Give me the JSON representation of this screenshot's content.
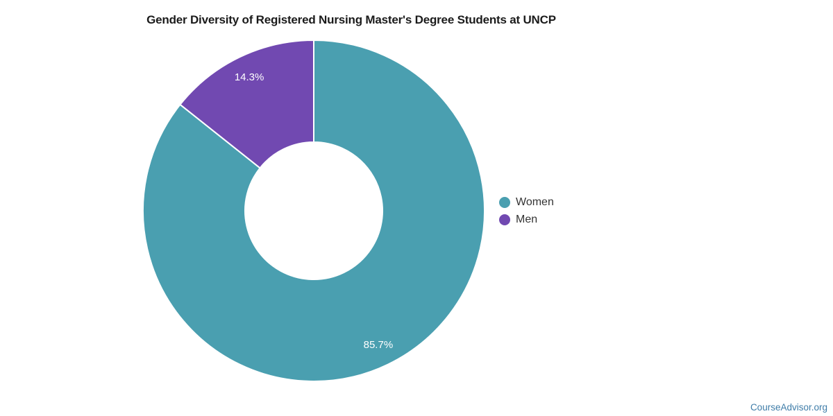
{
  "chart_data": {
    "type": "pie",
    "donut": true,
    "title": "Gender Diversity of Registered Nursing Master's Degree Students at UNCP",
    "slices": [
      {
        "label": "Women",
        "value": 85.7,
        "display": "85.7%",
        "color": "#4A9FB0"
      },
      {
        "label": "Men",
        "value": 14.3,
        "display": "14.3%",
        "color": "#7149B1"
      }
    ],
    "start_angle_deg": 0,
    "direction": "clockwise",
    "inner_radius_ratio": 0.4,
    "legend_position": "right",
    "legend": [
      "Women",
      "Men"
    ],
    "data_label_color": "#ffffff",
    "background_color": "#ffffff"
  },
  "footer": {
    "link_label": "CourseAdvisor.org",
    "link_color": "#3E7CA8"
  }
}
